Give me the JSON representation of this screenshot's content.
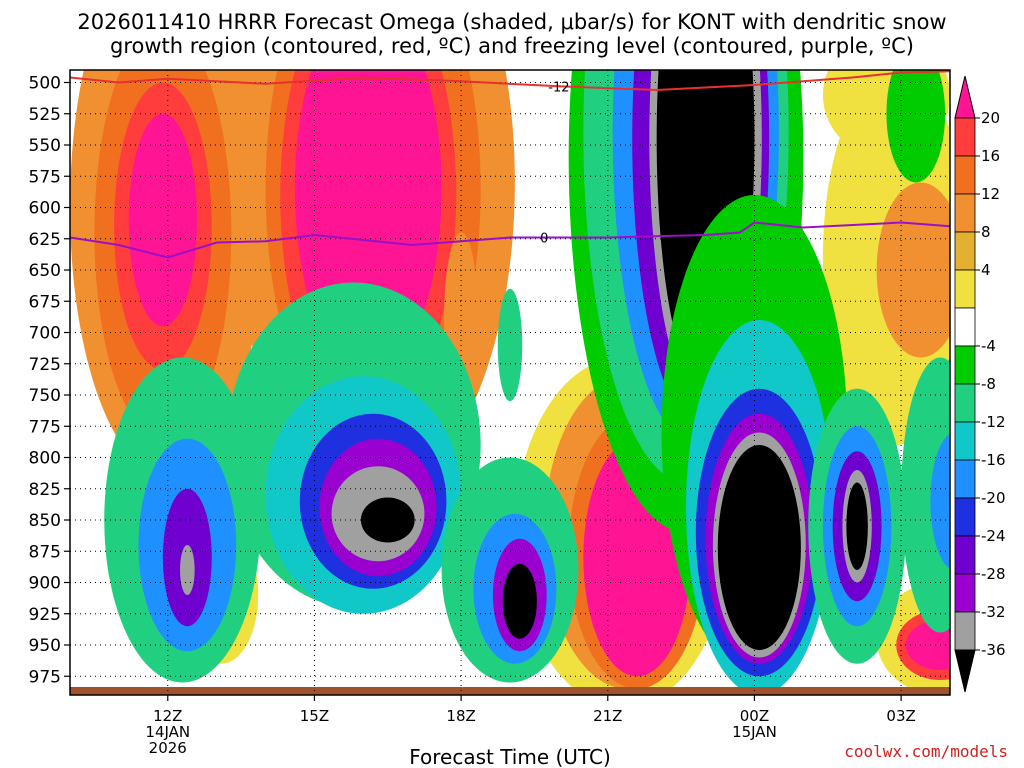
{
  "title_line1": "2026011410 HRRR Forecast Omega (shaded, μbar/s) for KONT with dendritic snow",
  "title_line2": "growth region (contoured, red, ºC) and freezing level (contoured, purple, ºC)",
  "credit": "coolwx.com/models",
  "chart_data": {
    "type": "heatmap",
    "xlabel": "Forecast Time (UTC)",
    "x_ticks": [
      {
        "label": "12Z",
        "sub1": "14JAN",
        "sub2": "2026",
        "hour": 12
      },
      {
        "label": "15Z",
        "sub1": "",
        "sub2": "",
        "hour": 15
      },
      {
        "label": "18Z",
        "sub1": "",
        "sub2": "",
        "hour": 18
      },
      {
        "label": "21Z",
        "sub1": "",
        "sub2": "",
        "hour": 21
      },
      {
        "label": "00Z",
        "sub1": "15JAN",
        "sub2": "",
        "hour": 24
      },
      {
        "label": "03Z",
        "sub1": "",
        "sub2": "",
        "hour": 27
      }
    ],
    "x_range": [
      10.0,
      28.0
    ],
    "y_range_hPa": [
      490,
      990
    ],
    "y_ticks": [
      500,
      525,
      550,
      575,
      600,
      625,
      650,
      675,
      700,
      725,
      750,
      775,
      800,
      825,
      850,
      875,
      900,
      925,
      950,
      975
    ],
    "colorbar": {
      "labels": [
        "20",
        "16",
        "12",
        "8",
        "4",
        "-4",
        "-8",
        "-12",
        "-16",
        "-20",
        "-24",
        "-28",
        "-32",
        "-36"
      ],
      "colors": [
        "#ff1493",
        "#ff3d3d",
        "#f07020",
        "#f09030",
        "#e4b030",
        "#f0e040",
        "#ffffff",
        "#00cc00",
        "#20d080",
        "#10c8c8",
        "#1e90ff",
        "#1e30e0",
        "#7000d0",
        "#9a00d0",
        "#a0a0a0",
        "#000000"
      ]
    },
    "red_line": {
      "label": "-12",
      "points": [
        [
          10.0,
          496
        ],
        [
          11.0,
          500
        ],
        [
          12.0,
          497
        ],
        [
          14.0,
          501
        ],
        [
          16.0,
          496
        ],
        [
          18.0,
          499
        ],
        [
          20.0,
          503
        ],
        [
          22.0,
          506
        ],
        [
          24.0,
          502
        ],
        [
          26.0,
          496
        ],
        [
          27.0,
          492
        ],
        [
          28.0,
          491
        ]
      ]
    },
    "purple_line": {
      "label": "0",
      "points": [
        [
          10.0,
          624
        ],
        [
          11.0,
          630
        ],
        [
          12.0,
          640
        ],
        [
          13.0,
          628
        ],
        [
          14.0,
          627
        ],
        [
          15.0,
          622
        ],
        [
          17.0,
          630
        ],
        [
          19.0,
          624
        ],
        [
          21.0,
          624
        ],
        [
          23.0,
          622
        ],
        [
          23.7,
          620
        ],
        [
          24.0,
          612
        ],
        [
          25.0,
          616
        ],
        [
          27.0,
          612
        ],
        [
          28.0,
          615
        ]
      ]
    },
    "omega_regions": [
      {
        "value": 8,
        "cx": 12.0,
        "cy": 600,
        "rx": 2.0,
        "ry": 215
      },
      {
        "value": 12,
        "cx": 11.9,
        "cy": 620,
        "rx": 1.4,
        "ry": 165
      },
      {
        "value": 16,
        "cx": 11.9,
        "cy": 615,
        "rx": 1.0,
        "ry": 115
      },
      {
        "value": 20,
        "cx": 11.9,
        "cy": 610,
        "rx": 0.7,
        "ry": 85
      },
      {
        "value": 8,
        "cx": 16.2,
        "cy": 580,
        "rx": 2.9,
        "ry": 250
      },
      {
        "value": 12,
        "cx": 16.2,
        "cy": 585,
        "rx": 2.2,
        "ry": 210
      },
      {
        "value": 16,
        "cx": 16.1,
        "cy": 590,
        "rx": 1.8,
        "ry": 180
      },
      {
        "value": 20,
        "cx": 16.1,
        "cy": 585,
        "rx": 1.5,
        "ry": 150
      },
      {
        "value": 8,
        "cx": 18.0,
        "cy": 690,
        "rx": 0.35,
        "ry": 70
      },
      {
        "value": 4,
        "cx": 26.9,
        "cy": 640,
        "rx": 1.5,
        "ry": 150
      },
      {
        "value": 8,
        "cx": 27.4,
        "cy": 650,
        "rx": 0.9,
        "ry": 70
      },
      {
        "value": 4,
        "cx": 24.2,
        "cy": 670,
        "rx": 0.9,
        "ry": 110
      },
      {
        "value": 8,
        "cx": 24.2,
        "cy": 670,
        "rx": 0.55,
        "ry": 65
      },
      {
        "value": 12,
        "cx": 24.2,
        "cy": 670,
        "rx": 0.3,
        "ry": 35
      },
      {
        "value": 4,
        "cx": 26.7,
        "cy": 510,
        "rx": 1.3,
        "ry": 50
      },
      {
        "value": 4,
        "cx": 13.1,
        "cy": 910,
        "rx": 0.75,
        "ry": 55
      },
      {
        "value": 8,
        "cx": 13.1,
        "cy": 910,
        "rx": 0.45,
        "ry": 30
      },
      {
        "value": 4,
        "cx": 21.3,
        "cy": 860,
        "rx": 2.2,
        "ry": 140
      },
      {
        "value": 8,
        "cx": 21.4,
        "cy": 860,
        "rx": 1.7,
        "ry": 125
      },
      {
        "value": 12,
        "cx": 21.6,
        "cy": 875,
        "rx": 1.4,
        "ry": 110
      },
      {
        "value": 20,
        "cx": 21.6,
        "cy": 880,
        "rx": 1.1,
        "ry": 95
      },
      {
        "value": 4,
        "cx": 27.8,
        "cy": 945,
        "rx": 1.3,
        "ry": 45
      },
      {
        "value": 16,
        "cx": 27.8,
        "cy": 950,
        "rx": 0.9,
        "ry": 28
      },
      {
        "value": 20,
        "cx": 27.8,
        "cy": 950,
        "rx": 0.7,
        "ry": 20
      },
      {
        "value": -4,
        "cx": 22.6,
        "cy": 560,
        "rx": 2.4,
        "ry": 300
      },
      {
        "value": -8,
        "cx": 22.6,
        "cy": 540,
        "rx": 2.1,
        "ry": 280
      },
      {
        "value": -16,
        "cx": 22.8,
        "cy": 540,
        "rx": 1.7,
        "ry": 250
      },
      {
        "value": -24,
        "cx": 22.9,
        "cy": 545,
        "rx": 1.4,
        "ry": 230
      },
      {
        "value": -32,
        "cx": 23.0,
        "cy": 545,
        "rx": 1.15,
        "ry": 215
      },
      {
        "value": -36,
        "cx": 23.0,
        "cy": 545,
        "rx": 1.0,
        "ry": 200
      },
      {
        "value": -4,
        "cx": 24.0,
        "cy": 780,
        "rx": 1.9,
        "ry": 190
      },
      {
        "value": -12,
        "cx": 24.1,
        "cy": 840,
        "rx": 1.5,
        "ry": 150
      },
      {
        "value": -20,
        "cx": 24.1,
        "cy": 860,
        "rx": 1.3,
        "ry": 115
      },
      {
        "value": -28,
        "cx": 24.1,
        "cy": 865,
        "rx": 1.1,
        "ry": 100
      },
      {
        "value": -32,
        "cx": 24.1,
        "cy": 870,
        "rx": 0.95,
        "ry": 90
      },
      {
        "value": -36,
        "cx": 24.1,
        "cy": 872,
        "rx": 0.85,
        "ry": 82
      },
      {
        "value": -8,
        "cx": 12.3,
        "cy": 850,
        "rx": 1.6,
        "ry": 130
      },
      {
        "value": -16,
        "cx": 12.4,
        "cy": 870,
        "rx": 1.0,
        "ry": 85
      },
      {
        "value": -24,
        "cx": 12.4,
        "cy": 880,
        "rx": 0.5,
        "ry": 55
      },
      {
        "value": -32,
        "cx": 12.4,
        "cy": 890,
        "rx": 0.15,
        "ry": 20
      },
      {
        "value": -8,
        "cx": 15.8,
        "cy": 790,
        "rx": 2.6,
        "ry": 130
      },
      {
        "value": -12,
        "cx": 16.0,
        "cy": 830,
        "rx": 2.0,
        "ry": 95
      },
      {
        "value": -20,
        "cx": 16.2,
        "cy": 835,
        "rx": 1.5,
        "ry": 70
      },
      {
        "value": -28,
        "cx": 16.3,
        "cy": 840,
        "rx": 1.2,
        "ry": 55
      },
      {
        "value": -32,
        "cx": 16.3,
        "cy": 845,
        "rx": 0.95,
        "ry": 38
      },
      {
        "value": -36,
        "cx": 16.5,
        "cy": 850,
        "rx": 0.55,
        "ry": 18
      },
      {
        "value": -8,
        "cx": 19.0,
        "cy": 890,
        "rx": 1.4,
        "ry": 90
      },
      {
        "value": -16,
        "cx": 19.1,
        "cy": 905,
        "rx": 0.85,
        "ry": 60
      },
      {
        "value": -28,
        "cx": 19.2,
        "cy": 910,
        "rx": 0.55,
        "ry": 45
      },
      {
        "value": -36,
        "cx": 19.2,
        "cy": 915,
        "rx": 0.35,
        "ry": 30
      },
      {
        "value": -8,
        "cx": 26.1,
        "cy": 855,
        "rx": 1.0,
        "ry": 110
      },
      {
        "value": -16,
        "cx": 26.1,
        "cy": 855,
        "rx": 0.7,
        "ry": 80
      },
      {
        "value": -24,
        "cx": 26.1,
        "cy": 855,
        "rx": 0.5,
        "ry": 60
      },
      {
        "value": -32,
        "cx": 26.1,
        "cy": 855,
        "rx": 0.3,
        "ry": 45
      },
      {
        "value": -36,
        "cx": 26.1,
        "cy": 855,
        "rx": 0.22,
        "ry": 35
      },
      {
        "value": -8,
        "cx": 27.8,
        "cy": 830,
        "rx": 0.8,
        "ry": 110
      },
      {
        "value": -16,
        "cx": 28.1,
        "cy": 835,
        "rx": 0.5,
        "ry": 55
      },
      {
        "value": -8,
        "cx": 19.0,
        "cy": 710,
        "rx": 0.25,
        "ry": 45
      },
      {
        "value": -4,
        "cx": 27.3,
        "cy": 525,
        "rx": 0.6,
        "ry": 55
      }
    ]
  }
}
